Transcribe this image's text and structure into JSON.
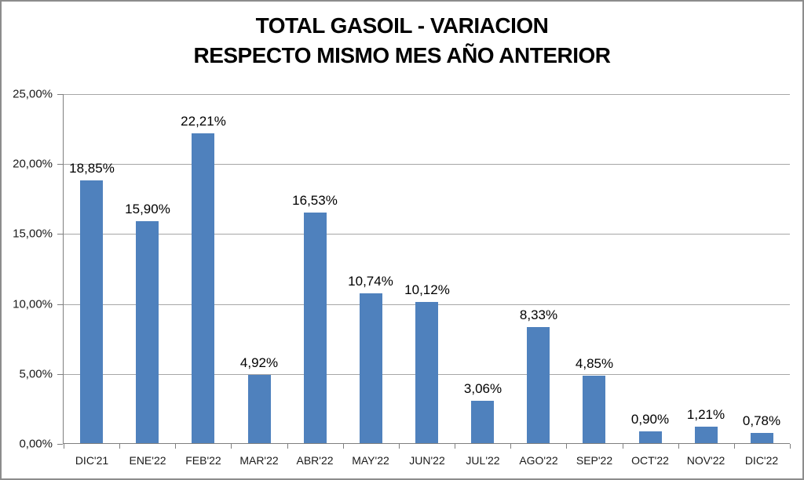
{
  "window": {
    "background": "#ffffff",
    "border_color": "#8c8c8c"
  },
  "chart_data": {
    "type": "bar",
    "title": "TOTAL GASOIL - VARIACION",
    "subtitle": "RESPECTO MISMO MES AÑO ANTERIOR",
    "categories": [
      "DIC'21",
      "ENE'22",
      "FEB'22",
      "MAR'22",
      "ABR'22",
      "MAY'22",
      "JUN'22",
      "JUL'22",
      "AGO'22",
      "SEP'22",
      "OCT'22",
      "NOV'22",
      "DIC'22"
    ],
    "values": [
      18.85,
      15.9,
      22.21,
      4.92,
      16.53,
      10.74,
      10.12,
      3.06,
      8.33,
      4.85,
      0.9,
      1.21,
      0.78
    ],
    "data_labels": [
      "18,85%",
      "15,90%",
      "22,21%",
      "4,92%",
      "16,53%",
      "10,74%",
      "10,12%",
      "3,06%",
      "8,33%",
      "4,85%",
      "0,90%",
      "1,21%",
      "0,78%"
    ],
    "xlabel": "",
    "ylabel": "",
    "ylim": [
      0,
      25
    ],
    "ytick_step": 5,
    "ytick_labels": [
      "0,00%",
      "5,00%",
      "10,00%",
      "15,00%",
      "20,00%",
      "25,00%"
    ],
    "grid": "horizontal",
    "legend": "none",
    "bar_color": "#4f81bd",
    "gridline_color": "#a6a6a6",
    "axis_color": "#7f7f7f",
    "data_label_color": "#000000",
    "tick_label_color": "#1a1a1a"
  }
}
